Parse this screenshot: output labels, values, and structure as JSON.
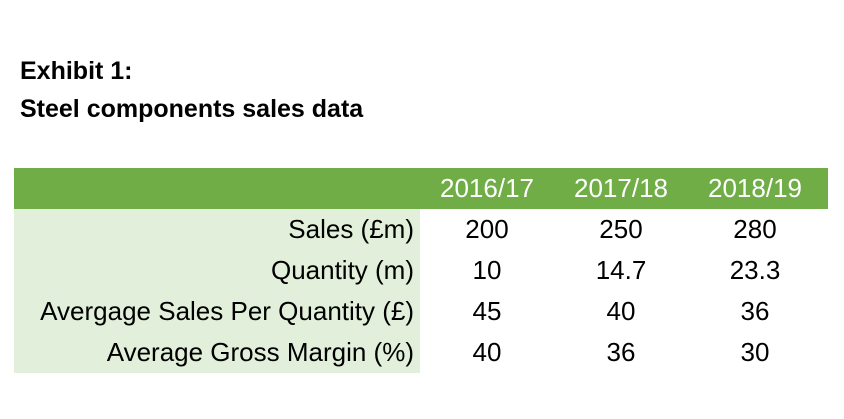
{
  "title": {
    "line1": "Exhibit 1:",
    "line2": "Steel components sales data"
  },
  "table": {
    "header_label": "",
    "columns": [
      "2016/17",
      "2017/18",
      "2018/19"
    ],
    "rows": [
      {
        "label": "Sales (£m)",
        "values": [
          "200",
          "250",
          "280"
        ]
      },
      {
        "label": "Quantity (m)",
        "values": [
          "10",
          "14.7",
          "23.3"
        ]
      },
      {
        "label": "Avergage Sales Per Quantity (£)",
        "values": [
          "45",
          "40",
          "36"
        ]
      },
      {
        "label": "Average Gross Margin (%)",
        "values": [
          "40",
          "36",
          "30"
        ]
      }
    ]
  },
  "colors": {
    "header_green": "#70ad47",
    "label_light_green": "#e2efda"
  }
}
